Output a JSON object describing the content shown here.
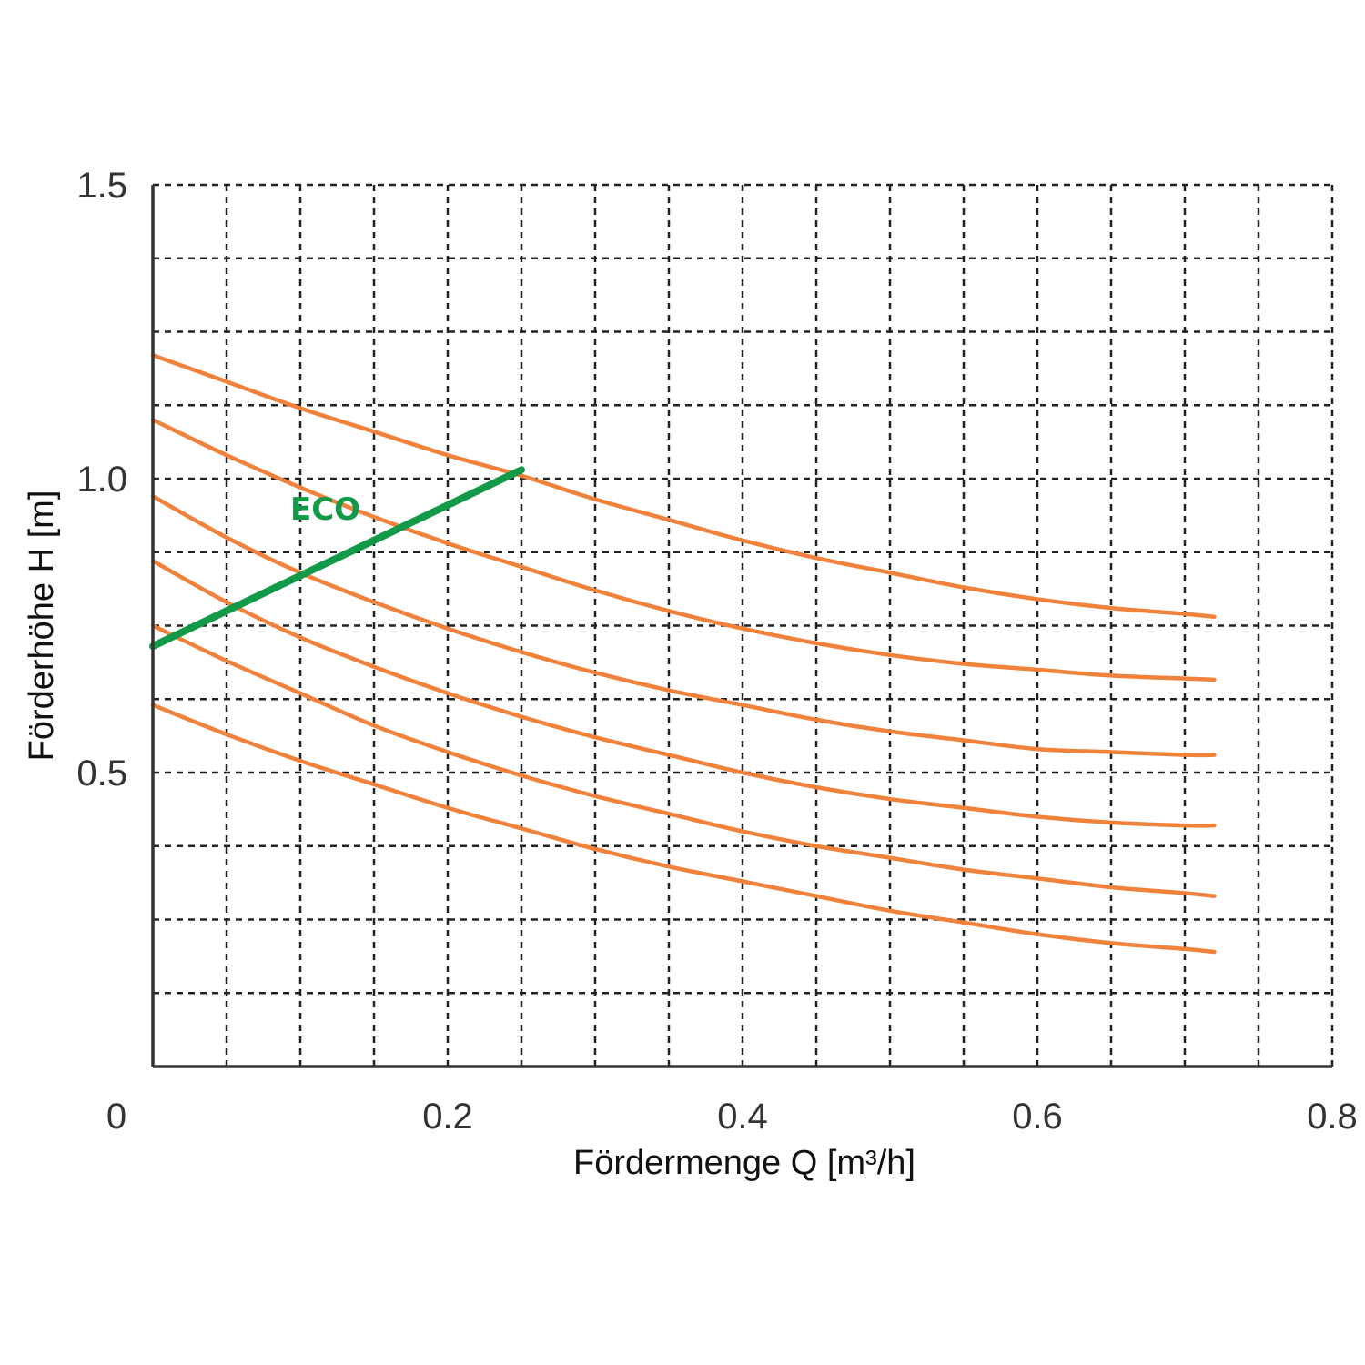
{
  "chart_data": {
    "type": "line",
    "title": "",
    "xlabel": "Fördermenge Q [m³/h]",
    "ylabel": "Förderhöhe H [m]",
    "xlim": [
      0,
      0.8
    ],
    "ylim": [
      0,
      1.5
    ],
    "x_ticks": [
      0,
      0.2,
      0.4,
      0.6,
      0.8
    ],
    "x_tick_labels": [
      "0",
      "0.2",
      "0.4",
      "0.6",
      "0.8"
    ],
    "y_ticks": [
      0.5,
      1.0,
      1.5
    ],
    "y_tick_labels": [
      "0.5",
      "1.0",
      "1.5"
    ],
    "x_grid_step": 0.05,
    "y_grid_step": 0.125,
    "grid": true,
    "grid_style": "dashed",
    "series": [
      {
        "color": "#f0823c",
        "x": [
          0,
          0.05,
          0.1,
          0.15,
          0.2,
          0.25,
          0.3,
          0.35,
          0.4,
          0.45,
          0.5,
          0.55,
          0.6,
          0.65,
          0.7,
          0.72
        ],
        "y": [
          1.21,
          1.165,
          1.12,
          1.08,
          1.04,
          1.005,
          0.965,
          0.93,
          0.895,
          0.865,
          0.84,
          0.815,
          0.795,
          0.78,
          0.77,
          0.765
        ]
      },
      {
        "color": "#f0823c",
        "x": [
          0,
          0.05,
          0.1,
          0.15,
          0.2,
          0.25,
          0.3,
          0.35,
          0.4,
          0.45,
          0.5,
          0.55,
          0.6,
          0.65,
          0.7,
          0.72
        ],
        "y": [
          1.1,
          1.04,
          0.985,
          0.935,
          0.89,
          0.85,
          0.81,
          0.775,
          0.745,
          0.72,
          0.7,
          0.685,
          0.675,
          0.665,
          0.66,
          0.658
        ]
      },
      {
        "color": "#f0823c",
        "x": [
          0,
          0.05,
          0.1,
          0.15,
          0.2,
          0.25,
          0.3,
          0.35,
          0.4,
          0.45,
          0.5,
          0.55,
          0.6,
          0.65,
          0.7,
          0.72
        ],
        "y": [
          0.97,
          0.9,
          0.84,
          0.79,
          0.745,
          0.705,
          0.67,
          0.64,
          0.615,
          0.59,
          0.57,
          0.555,
          0.54,
          0.535,
          0.53,
          0.53
        ]
      },
      {
        "color": "#f0823c",
        "x": [
          0,
          0.05,
          0.1,
          0.15,
          0.2,
          0.25,
          0.3,
          0.35,
          0.4,
          0.45,
          0.5,
          0.55,
          0.6,
          0.65,
          0.7,
          0.72
        ],
        "y": [
          0.86,
          0.79,
          0.73,
          0.68,
          0.635,
          0.595,
          0.56,
          0.53,
          0.5,
          0.475,
          0.455,
          0.44,
          0.425,
          0.415,
          0.41,
          0.41
        ]
      },
      {
        "color": "#f0823c",
        "x": [
          0,
          0.05,
          0.1,
          0.15,
          0.2,
          0.25,
          0.3,
          0.35,
          0.4,
          0.45,
          0.5,
          0.55,
          0.6,
          0.65,
          0.7,
          0.72
        ],
        "y": [
          0.75,
          0.69,
          0.635,
          0.58,
          0.535,
          0.495,
          0.46,
          0.43,
          0.4,
          0.375,
          0.355,
          0.335,
          0.32,
          0.305,
          0.295,
          0.29
        ]
      },
      {
        "color": "#f0823c",
        "x": [
          0,
          0.05,
          0.1,
          0.15,
          0.2,
          0.25,
          0.3,
          0.35,
          0.4,
          0.45,
          0.5,
          0.55,
          0.6,
          0.65,
          0.7,
          0.72
        ],
        "y": [
          0.615,
          0.565,
          0.52,
          0.48,
          0.44,
          0.405,
          0.37,
          0.34,
          0.315,
          0.29,
          0.265,
          0.245,
          0.225,
          0.21,
          0.2,
          0.195
        ]
      }
    ],
    "eco_line": {
      "label": "ECO",
      "color": "#129a48",
      "x": [
        0,
        0.25
      ],
      "y": [
        0.715,
        1.015
      ]
    }
  }
}
